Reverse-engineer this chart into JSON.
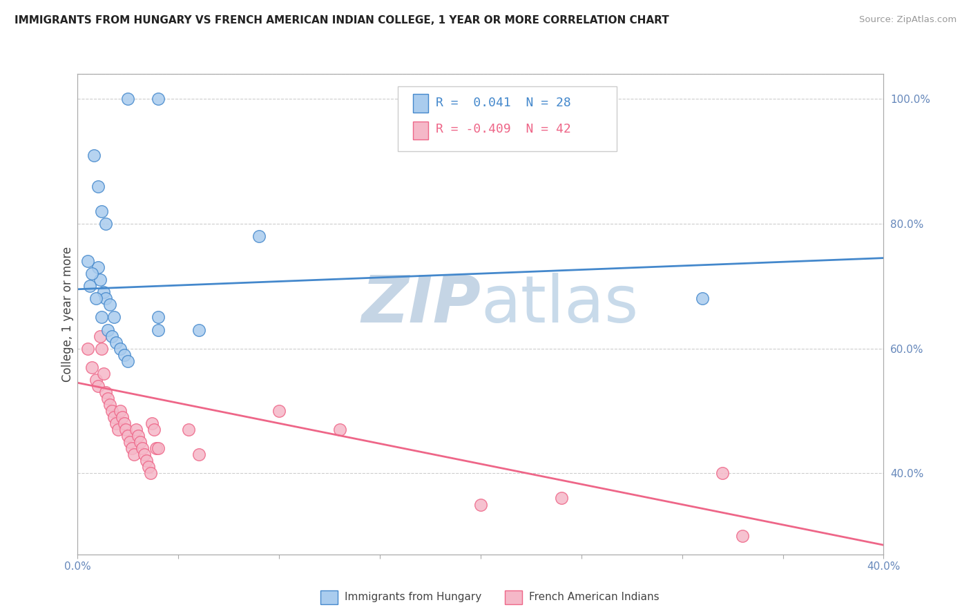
{
  "title": "IMMIGRANTS FROM HUNGARY VS FRENCH AMERICAN INDIAN COLLEGE, 1 YEAR OR MORE CORRELATION CHART",
  "source": "Source: ZipAtlas.com",
  "ylabel": "College, 1 year or more",
  "xmin": 0.0,
  "xmax": 0.4,
  "ymin": 0.27,
  "ymax": 1.04,
  "right_yticks": [
    0.4,
    0.6,
    0.8,
    1.0
  ],
  "right_yticklabels": [
    "40.0%",
    "60.0%",
    "80.0%",
    "100.0%"
  ],
  "xticks": [
    0.0,
    0.05,
    0.1,
    0.15,
    0.2,
    0.25,
    0.3,
    0.35,
    0.4
  ],
  "xticklabels": [
    "0.0%",
    "",
    "",
    "",
    "",
    "",
    "",
    "",
    "40.0%"
  ],
  "blue_R": 0.041,
  "blue_N": 28,
  "pink_R": -0.409,
  "pink_N": 42,
  "blue_color": "#aaccee",
  "pink_color": "#f5b8c8",
  "blue_line_color": "#4488cc",
  "pink_line_color": "#ee6688",
  "watermark_zip": "ZIP",
  "watermark_atlas": "atlas",
  "watermark_color": "#dde8f2",
  "blue_scatter_x": [
    0.025,
    0.04,
    0.008,
    0.01,
    0.012,
    0.014,
    0.01,
    0.011,
    0.013,
    0.014,
    0.016,
    0.018,
    0.005,
    0.007,
    0.006,
    0.009,
    0.012,
    0.015,
    0.017,
    0.019,
    0.021,
    0.023,
    0.025,
    0.06,
    0.09,
    0.31,
    0.04,
    0.04
  ],
  "blue_scatter_y": [
    1.0,
    1.0,
    0.91,
    0.86,
    0.82,
    0.8,
    0.73,
    0.71,
    0.69,
    0.68,
    0.67,
    0.65,
    0.74,
    0.72,
    0.7,
    0.68,
    0.65,
    0.63,
    0.62,
    0.61,
    0.6,
    0.59,
    0.58,
    0.63,
    0.78,
    0.68,
    0.63,
    0.65
  ],
  "pink_scatter_x": [
    0.005,
    0.007,
    0.009,
    0.01,
    0.011,
    0.012,
    0.013,
    0.014,
    0.015,
    0.016,
    0.017,
    0.018,
    0.019,
    0.02,
    0.021,
    0.022,
    0.023,
    0.024,
    0.025,
    0.026,
    0.027,
    0.028,
    0.029,
    0.03,
    0.031,
    0.032,
    0.033,
    0.034,
    0.035,
    0.036,
    0.037,
    0.038,
    0.039,
    0.04,
    0.055,
    0.06,
    0.1,
    0.13,
    0.2,
    0.24,
    0.32,
    0.33
  ],
  "pink_scatter_y": [
    0.6,
    0.57,
    0.55,
    0.54,
    0.62,
    0.6,
    0.56,
    0.53,
    0.52,
    0.51,
    0.5,
    0.49,
    0.48,
    0.47,
    0.5,
    0.49,
    0.48,
    0.47,
    0.46,
    0.45,
    0.44,
    0.43,
    0.47,
    0.46,
    0.45,
    0.44,
    0.43,
    0.42,
    0.41,
    0.4,
    0.48,
    0.47,
    0.44,
    0.44,
    0.47,
    0.43,
    0.5,
    0.47,
    0.35,
    0.36,
    0.4,
    0.3
  ],
  "blue_trend_x": [
    0.0,
    0.4
  ],
  "blue_trend_y": [
    0.695,
    0.745
  ],
  "pink_trend_x": [
    0.0,
    0.4
  ],
  "pink_trend_y": [
    0.545,
    0.285
  ]
}
